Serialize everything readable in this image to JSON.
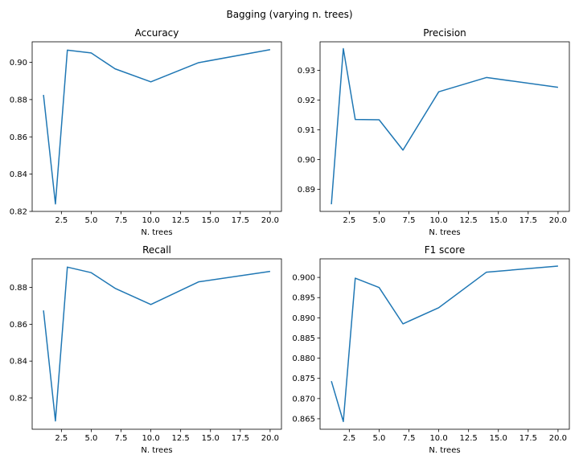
{
  "figure": {
    "suptitle": "Bagging (varying n. trees)"
  },
  "chart_data": [
    {
      "type": "line",
      "title": "Accuracy",
      "xlabel": "N. trees",
      "ylabel": "",
      "x": [
        1,
        2,
        3,
        5,
        7,
        10,
        14,
        20
      ],
      "series": [
        {
          "name": "",
          "values": [
            0.8825,
            0.824,
            0.9065,
            0.905,
            0.8965,
            0.8895,
            0.8998,
            0.9068
          ]
        }
      ],
      "xlim": [
        0.05,
        20.95
      ],
      "ylim": [
        0.82,
        0.911
      ],
      "xticks": [
        2.5,
        5.0,
        7.5,
        10.0,
        12.5,
        15.0,
        17.5,
        20.0
      ],
      "xtick_labels": [
        "2.5",
        "5.0",
        "7.5",
        "10.0",
        "12.5",
        "15.0",
        "17.5",
        "20.0"
      ],
      "yticks": [
        0.82,
        0.84,
        0.86,
        0.88,
        0.9
      ],
      "ytick_labels": [
        "0.82",
        "0.84",
        "0.86",
        "0.88",
        "0.90"
      ],
      "grid": false,
      "color": "#1f77b4"
    },
    {
      "type": "line",
      "title": "Precision",
      "xlabel": "N. trees",
      "ylabel": "",
      "x": [
        1,
        2,
        3,
        5,
        7,
        10,
        14,
        20
      ],
      "series": [
        {
          "name": "",
          "values": [
            0.885,
            0.9373,
            0.9135,
            0.9134,
            0.9032,
            0.9228,
            0.9276,
            0.9243
          ]
        }
      ],
      "xlim": [
        0.05,
        20.95
      ],
      "ylim": [
        0.8826,
        0.9396
      ],
      "xticks": [
        2.5,
        5.0,
        7.5,
        10.0,
        12.5,
        15.0,
        17.5,
        20.0
      ],
      "xtick_labels": [
        "2.5",
        "5.0",
        "7.5",
        "10.0",
        "12.5",
        "15.0",
        "17.5",
        "20.0"
      ],
      "yticks": [
        0.89,
        0.9,
        0.91,
        0.92,
        0.93
      ],
      "ytick_labels": [
        "0.89",
        "0.90",
        "0.91",
        "0.92",
        "0.93"
      ],
      "grid": false,
      "color": "#1f77b4"
    },
    {
      "type": "line",
      "title": "Recall",
      "xlabel": "N. trees",
      "ylabel": "",
      "x": [
        1,
        2,
        3,
        5,
        7,
        10,
        14,
        20
      ],
      "series": [
        {
          "name": "",
          "values": [
            0.8675,
            0.8075,
            0.891,
            0.888,
            0.8795,
            0.8707,
            0.883,
            0.8887
          ]
        }
      ],
      "xlim": [
        0.05,
        20.95
      ],
      "ylim": [
        0.803,
        0.8955
      ],
      "xticks": [
        2.5,
        5.0,
        7.5,
        10.0,
        12.5,
        15.0,
        17.5,
        20.0
      ],
      "xtick_labels": [
        "2.5",
        "5.0",
        "7.5",
        "10.0",
        "12.5",
        "15.0",
        "17.5",
        "20.0"
      ],
      "yticks": [
        0.82,
        0.84,
        0.86,
        0.88
      ],
      "ytick_labels": [
        "0.82",
        "0.84",
        "0.86",
        "0.88"
      ],
      "grid": false,
      "color": "#1f77b4"
    },
    {
      "type": "line",
      "title": "F1 score",
      "xlabel": "N. trees",
      "ylabel": "",
      "x": [
        1,
        2,
        3,
        5,
        7,
        10,
        14,
        20
      ],
      "series": [
        {
          "name": "",
          "values": [
            0.8743,
            0.8643,
            0.8998,
            0.8975,
            0.8885,
            0.8925,
            0.9013,
            0.9028
          ]
        }
      ],
      "xlim": [
        0.05,
        20.95
      ],
      "ylim": [
        0.8624,
        0.9046
      ],
      "xticks": [
        2.5,
        5.0,
        7.5,
        10.0,
        12.5,
        15.0,
        17.5,
        20.0
      ],
      "xtick_labels": [
        "2.5",
        "5.0",
        "7.5",
        "10.0",
        "12.5",
        "15.0",
        "17.5",
        "20.0"
      ],
      "yticks": [
        0.865,
        0.87,
        0.875,
        0.88,
        0.885,
        0.89,
        0.895,
        0.9
      ],
      "ytick_labels": [
        "0.865",
        "0.870",
        "0.875",
        "0.880",
        "0.885",
        "0.890",
        "0.895",
        "0.900"
      ],
      "grid": false,
      "color": "#1f77b4"
    }
  ]
}
